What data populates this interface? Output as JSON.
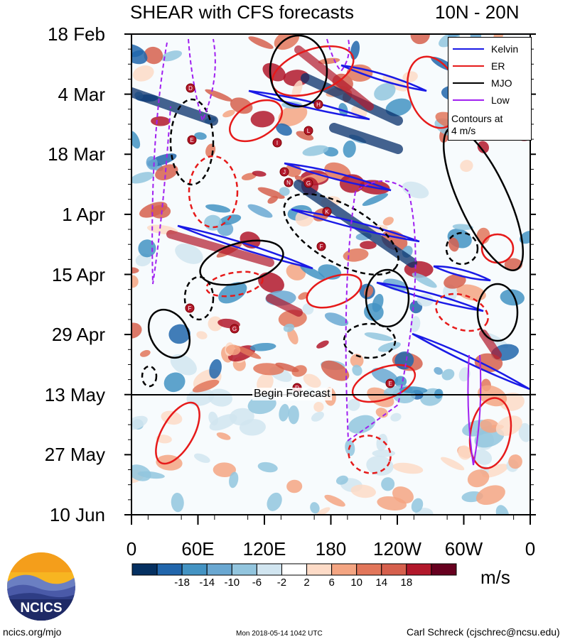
{
  "title": "SHEAR with CFS forecasts",
  "region": "10N - 20N",
  "legend": {
    "items": [
      {
        "label": "Kelvin",
        "color": "#1a1ae6"
      },
      {
        "label": "ER",
        "color": "#e61a1a"
      },
      {
        "label": "MJO",
        "color": "#000000"
      },
      {
        "label": "Low",
        "color": "#a020f0"
      }
    ],
    "note_line1": "Contours at",
    "note_line2": "4 m/s"
  },
  "forecast_label": "Begin Forecast",
  "colorbar": {
    "units": "m/s",
    "colors": [
      "#053061",
      "#2166ac",
      "#4393c3",
      "#6aa8d2",
      "#92c5de",
      "#d1e5f0",
      "#ffffff",
      "#fddbc7",
      "#f4a582",
      "#e2765a",
      "#d6604d",
      "#b2182b",
      "#67001f"
    ]
  },
  "footer": {
    "left": "ncics.org/mjo",
    "middle": "Mon 2018-05-14 1042 UTC",
    "right": "Carl Schreck (cjschrec@ncsu.edu)"
  },
  "logo_text": "NCICS",
  "chart_data": {
    "type": "heatmap",
    "title": "SHEAR with CFS forecasts",
    "subtitle": "10N - 20N",
    "xlabel": "",
    "ylabel": "",
    "x_ticks": [
      "0",
      "60E",
      "120E",
      "180",
      "120W",
      "60W",
      "0"
    ],
    "x_range": [
      0,
      360
    ],
    "y_ticks": [
      "18 Feb",
      "4 Mar",
      "18 Mar",
      "1 Apr",
      "15 Apr",
      "29 Apr",
      "13 May",
      "27 May",
      "10 Jun"
    ],
    "y_range": [
      "18 Feb",
      "10 Jun"
    ],
    "forecast_start": "13 May",
    "colorbar_ticks": [
      "-18",
      "-14",
      "-10",
      "-6",
      "-2",
      "2",
      "6",
      "10",
      "14",
      "18"
    ],
    "colorbar_units": "m/s",
    "contour_interval": "4 m/s",
    "series": [
      {
        "name": "Kelvin"
      },
      {
        "name": "ER"
      },
      {
        "name": "MJO"
      },
      {
        "name": "Low"
      }
    ],
    "storm_markers": [
      "D",
      "E",
      "H",
      "I",
      "L",
      "J",
      "N",
      "G",
      "K",
      "F",
      "F",
      "G"
    ]
  }
}
